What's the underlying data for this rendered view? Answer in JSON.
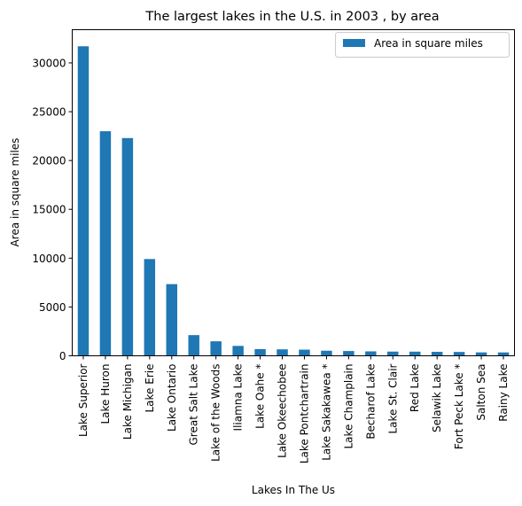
{
  "chart_data": {
    "type": "bar",
    "title": "The largest lakes in the U.S. in 2003 , by area",
    "xlabel": "Lakes In The Us",
    "ylabel": "Area in square miles",
    "ylim": [
      0,
      33400
    ],
    "yticks": [
      0,
      5000,
      10000,
      15000,
      20000,
      25000,
      30000
    ],
    "legend_position": "top-right",
    "grid": false,
    "bar_color": "#1f77b4",
    "categories": [
      "Lake Superior",
      "Lake Huron",
      "Lake Michigan",
      "Lake Erie",
      "Lake Ontario",
      "Great Salt Lake",
      "Lake of the Woods",
      "Iliamna Lake",
      "Lake Oahe *",
      "Lake Okeechobee",
      "Lake Pontchartrain",
      "Lake Sakakawea *",
      "Lake Champlain",
      "Becharof Lake",
      "Lake St. Clair",
      "Red Lake",
      "Selawik Lake",
      "Fort Peck Lake *",
      "Salton Sea",
      "Rainy Lake"
    ],
    "series": [
      {
        "name": "Area in square miles",
        "values": [
          31700,
          23000,
          22300,
          9910,
          7340,
          2117,
          1485,
          1014,
          685,
          662,
          631,
          520,
          490,
          453,
          430,
          427,
          404,
          393,
          347,
          345
        ]
      }
    ]
  }
}
